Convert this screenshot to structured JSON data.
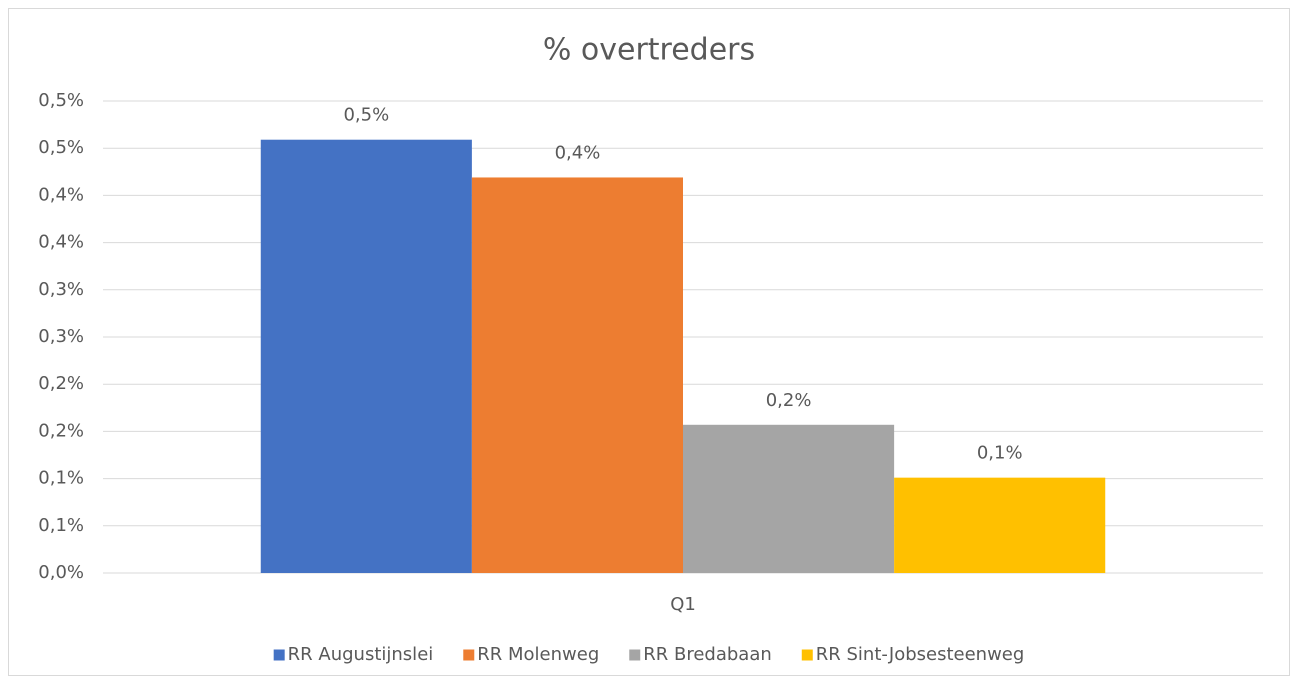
{
  "chart_data": {
    "type": "bar",
    "title": "% overtreders",
    "categories": [
      "Q1"
    ],
    "series": [
      {
        "name": "RR Augustijnslei",
        "color": "#4472c4",
        "values": [
          0.459
        ],
        "value_labels": [
          "0,5%"
        ]
      },
      {
        "name": "RR Molenweg",
        "color": "#ed7d31",
        "values": [
          0.419
        ],
        "value_labels": [
          "0,4%"
        ]
      },
      {
        "name": "RR Bredabaan",
        "color": "#a5a5a5",
        "values": [
          0.157
        ],
        "value_labels": [
          "0,2%"
        ]
      },
      {
        "name": "RR Sint-Jobsesteenweg",
        "color": "#ffc000",
        "values": [
          0.101
        ],
        "value_labels": [
          "0,1%"
        ]
      }
    ],
    "ylim": [
      0,
      0.5
    ],
    "yticks": [
      {
        "value": 0,
        "label": "0,0%"
      },
      {
        "value": 0.05,
        "label": "0,1%"
      },
      {
        "value": 0.1,
        "label": "0,1%"
      },
      {
        "value": 0.15,
        "label": "0,2%"
      },
      {
        "value": 0.2,
        "label": "0,2%"
      },
      {
        "value": 0.25,
        "label": "0,3%"
      },
      {
        "value": 0.3,
        "label": "0,3%"
      },
      {
        "value": 0.35,
        "label": "0,4%"
      },
      {
        "value": 0.4,
        "label": "0,4%"
      },
      {
        "value": 0.45,
        "label": "0,5%"
      },
      {
        "value": 0.5,
        "label": "0,5%"
      }
    ],
    "grid": true,
    "legend": "bottom"
  }
}
